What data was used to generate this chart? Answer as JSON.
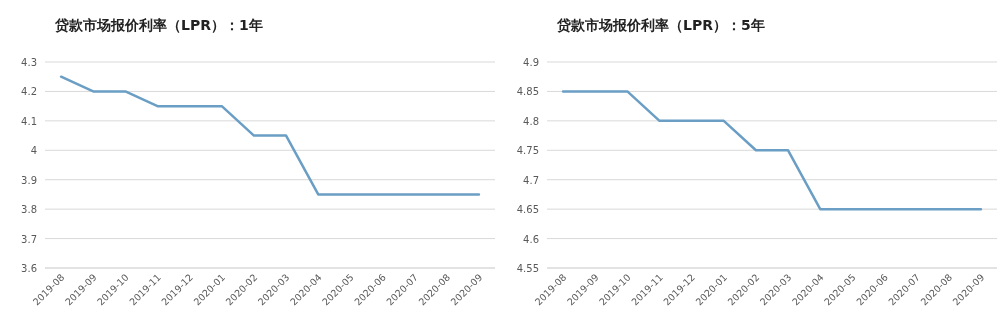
{
  "chart_data": [
    {
      "type": "line",
      "title": "贷款市场报价利率（LPR）：1年",
      "categories": [
        "2019-08",
        "2019-09",
        "2019-10",
        "2019-11",
        "2019-12",
        "2020-01",
        "2020-02",
        "2020-03",
        "2020-04",
        "2020-05",
        "2020-06",
        "2020-07",
        "2020-08",
        "2020-09"
      ],
      "series": [
        {
          "color": "#6a9ec4",
          "values": [
            4.25,
            4.2,
            4.2,
            4.15,
            4.15,
            4.15,
            4.05,
            4.05,
            3.85,
            3.85,
            3.85,
            3.85,
            3.85,
            3.85
          ]
        }
      ],
      "ylim": [
        3.6,
        4.3
      ],
      "yticks": [
        3.6,
        3.7,
        3.8,
        3.9,
        {
          "value": 4,
          "label": "4"
        },
        4.1,
        4.2,
        4.3
      ],
      "grid": "y",
      "marker": "none",
      "line_style": "solid"
    },
    {
      "type": "line",
      "title": "贷款市场报价利率（LPR）：5年",
      "categories": [
        "2019-08",
        "2019-09",
        "2019-10",
        "2019-11",
        "2019-12",
        "2020-01",
        "2020-02",
        "2020-03",
        "2020-04",
        "2020-05",
        "2020-06",
        "2020-07",
        "2020-08",
        "2020-09"
      ],
      "series": [
        {
          "color": "#6a9ec4",
          "values": [
            4.85,
            4.85,
            4.85,
            4.8,
            4.8,
            4.8,
            4.75,
            4.75,
            4.65,
            4.65,
            4.65,
            4.65,
            4.65,
            4.65
          ]
        }
      ],
      "ylim": [
        4.55,
        4.9
      ],
      "yticks": [
        4.55,
        4.6,
        4.65,
        4.7,
        4.75,
        4.8,
        4.85,
        4.9
      ],
      "grid": "y",
      "marker": "none",
      "line_style": "solid"
    }
  ]
}
